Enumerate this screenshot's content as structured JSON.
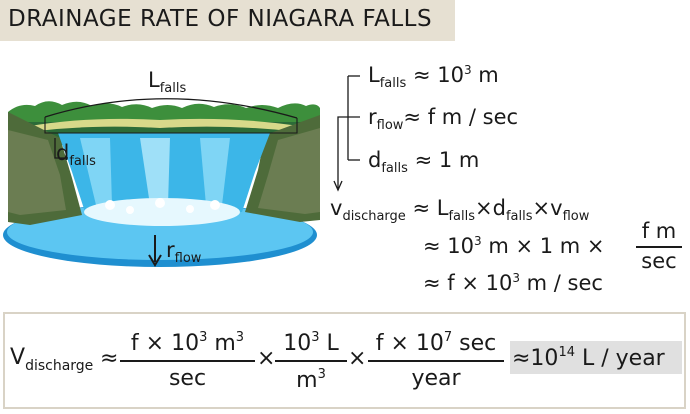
{
  "title": "DRAINAGE RATE OF NIAGARA FALLS",
  "labels": {
    "L": "L",
    "falls": "falls",
    "d": "d",
    "r": "r",
    "flow": "flow",
    "v": "v",
    "V": "V",
    "discharge": "discharge"
  },
  "estimates": {
    "L_rhs": "≈ 10",
    "L_exp": "3",
    "L_unit": " m",
    "r_rhs": "≈ f m / sec",
    "d_rhs": "≈ 1 m"
  },
  "derivation": {
    "line1_approx": "≈",
    "times": "×",
    "line2_a": "≈ 10",
    "line2_exp": "3",
    "line2_b": " m × 1 m ×",
    "frac_num": "f m",
    "frac_den": "sec",
    "line3_a": "≈ f × 10",
    "line3_exp": "3",
    "line3_b": " m / sec"
  },
  "final": {
    "approx": "≈",
    "times": "×",
    "f1_num_a": "f × 10",
    "f1_num_exp1": "3",
    "f1_num_b": " m",
    "f1_num_exp2": "3",
    "f1_den": "sec",
    "f2_num_a": "10",
    "f2_num_exp": "3",
    "f2_num_b": " L",
    "f2_den_a": "m",
    "f2_den_exp": "3",
    "f3_num_a": "f × 10",
    "f3_num_exp": "7",
    "f3_num_b": " sec",
    "f3_den": "year",
    "result_a": "≈10",
    "result_exp": "14",
    "result_b": " L / year"
  }
}
